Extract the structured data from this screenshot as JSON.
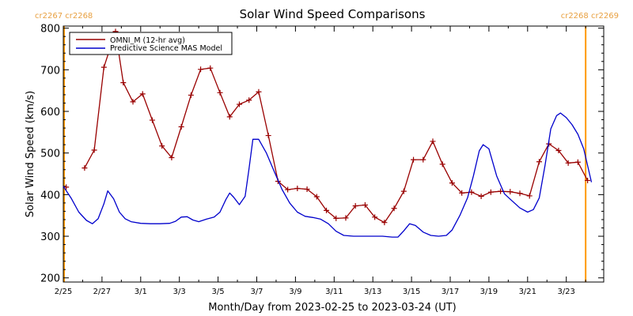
{
  "chart_data": {
    "type": "line",
    "title": "Solar Wind Speed Comparisons",
    "xlabel": "Month/Day from 2023-02-25 to 2023-03-24 (UT)",
    "ylabel": "Solar Wind Speed (km/s)",
    "ylim": [
      190,
      805
    ],
    "xlim": [
      0,
      27.6
    ],
    "grid": false,
    "legend_position": "top-left",
    "yticks": [
      200,
      300,
      400,
      500,
      600,
      700,
      800
    ],
    "xticks": [
      {
        "day": 0,
        "label": "2/25"
      },
      {
        "day": 2,
        "label": "2/27"
      },
      {
        "day": 4,
        "label": "3/1"
      },
      {
        "day": 6,
        "label": "3/3"
      },
      {
        "day": 8,
        "label": "3/5"
      },
      {
        "day": 10,
        "label": "3/7"
      },
      {
        "day": 12,
        "label": "3/9"
      },
      {
        "day": 14,
        "label": "3/11"
      },
      {
        "day": 16,
        "label": "3/13"
      },
      {
        "day": 18,
        "label": "3/15"
      },
      {
        "day": 20,
        "label": "3/17"
      },
      {
        "day": 22,
        "label": "3/19"
      },
      {
        "day": 24,
        "label": "3/21"
      },
      {
        "day": 26,
        "label": "3/23"
      }
    ],
    "carrington_rotations": [
      {
        "day": 0,
        "left_label": "cr2267",
        "right_label": "cr2268",
        "label_side": "left"
      },
      {
        "day": 27.0,
        "left_label": "cr2268",
        "right_label": "cr2269",
        "label_side": "right"
      }
    ],
    "colors": {
      "omni": "#990000",
      "mas": "#0000cc",
      "boundary": "#ff9900",
      "cr_text": "#e8a040"
    },
    "series": [
      {
        "name": "OMNI_M (12-hr avg)",
        "segments": [
          [
            [
              0.15,
              418
            ]
          ],
          [
            [
              1.1,
              464
            ],
            [
              1.6,
              507
            ],
            [
              2.1,
              706
            ],
            [
              2.7,
              792
            ],
            [
              3.1,
              669
            ],
            [
              3.6,
              623
            ],
            [
              4.1,
              642
            ],
            [
              4.6,
              579
            ],
            [
              5.1,
              517
            ],
            [
              5.6,
              489
            ],
            [
              6.1,
              563
            ],
            [
              6.6,
              639
            ],
            [
              7.1,
              701
            ],
            [
              7.6,
              704
            ],
            [
              8.1,
              645
            ],
            [
              8.6,
              587
            ],
            [
              9.1,
              617
            ],
            [
              9.6,
              627
            ],
            [
              10.1,
              647
            ],
            [
              10.6,
              542
            ],
            [
              11.1,
              432
            ],
            [
              11.6,
              412
            ],
            [
              12.1,
              415
            ],
            [
              12.6,
              413
            ],
            [
              13.1,
              395
            ],
            [
              13.6,
              362
            ],
            [
              14.1,
              343
            ],
            [
              14.6,
              344
            ],
            [
              15.1,
              373
            ],
            [
              15.6,
              375
            ],
            [
              16.1,
              346
            ],
            [
              16.6,
              333
            ],
            [
              17.1,
              367
            ],
            [
              17.6,
              408
            ],
            [
              18.1,
              484
            ],
            [
              18.6,
              484
            ],
            [
              19.1,
              528
            ],
            [
              19.6,
              473
            ],
            [
              20.1,
              428
            ],
            [
              20.6,
              404
            ],
            [
              21.1,
              406
            ],
            [
              21.6,
              396
            ],
            [
              22.1,
              406
            ],
            [
              22.6,
              408
            ],
            [
              23.1,
              407
            ],
            [
              23.6,
              403
            ],
            [
              24.1,
              397
            ],
            [
              24.6,
              479
            ],
            [
              25.1,
              522
            ],
            [
              25.6,
              506
            ],
            [
              26.1,
              476
            ],
            [
              26.6,
              478
            ],
            [
              27.1,
              434
            ]
          ]
        ]
      },
      {
        "name": "Predictive Science MAS Model",
        "segments": [
          [
            [
              0,
              420
            ],
            [
              0.4,
              392
            ],
            [
              0.8,
              358
            ],
            [
              1.2,
              338
            ],
            [
              1.5,
              330
            ],
            [
              1.8,
              342
            ],
            [
              2.1,
              378
            ],
            [
              2.3,
              409
            ],
            [
              2.6,
              390
            ],
            [
              2.9,
              358
            ],
            [
              3.2,
              342
            ],
            [
              3.5,
              335
            ],
            [
              4.0,
              331
            ],
            [
              4.5,
              330
            ],
            [
              5.0,
              330
            ],
            [
              5.5,
              331
            ],
            [
              5.8,
              336
            ],
            [
              6.1,
              346
            ],
            [
              6.4,
              347
            ],
            [
              6.7,
              339
            ],
            [
              7.0,
              335
            ],
            [
              7.4,
              341
            ],
            [
              7.8,
              346
            ],
            [
              8.1,
              358
            ],
            [
              8.4,
              388
            ],
            [
              8.6,
              404
            ],
            [
              8.8,
              394
            ],
            [
              9.1,
              376
            ],
            [
              9.4,
              396
            ],
            [
              9.6,
              462
            ],
            [
              9.8,
              533
            ],
            [
              10.1,
              533
            ],
            [
              10.5,
              500
            ],
            [
              10.9,
              456
            ],
            [
              11.3,
              413
            ],
            [
              11.7,
              380
            ],
            [
              12.1,
              358
            ],
            [
              12.5,
              348
            ],
            [
              12.9,
              345
            ],
            [
              13.3,
              341
            ],
            [
              13.7,
              330
            ],
            [
              14.1,
              312
            ],
            [
              14.5,
              302
            ],
            [
              15.0,
              300
            ],
            [
              15.5,
              300
            ],
            [
              16.0,
              300
            ],
            [
              16.5,
              300
            ],
            [
              17.0,
              298
            ],
            [
              17.3,
              298
            ],
            [
              17.6,
              313
            ],
            [
              17.9,
              330
            ],
            [
              18.2,
              326
            ],
            [
              18.6,
              310
            ],
            [
              19.0,
              302
            ],
            [
              19.4,
              300
            ],
            [
              19.8,
              302
            ],
            [
              20.1,
              315
            ],
            [
              20.5,
              350
            ],
            [
              20.9,
              393
            ],
            [
              21.2,
              445
            ],
            [
              21.5,
              505
            ],
            [
              21.7,
              520
            ],
            [
              22.0,
              510
            ],
            [
              22.4,
              445
            ],
            [
              22.8,
              402
            ],
            [
              23.2,
              385
            ],
            [
              23.6,
              368
            ],
            [
              24.0,
              358
            ],
            [
              24.3,
              364
            ],
            [
              24.6,
              392
            ],
            [
              24.9,
              470
            ],
            [
              25.2,
              558
            ],
            [
              25.5,
              590
            ],
            [
              25.7,
              596
            ],
            [
              26.0,
              585
            ],
            [
              26.3,
              568
            ],
            [
              26.6,
              545
            ],
            [
              26.9,
              510
            ],
            [
              27.1,
              470
            ],
            [
              27.3,
              430
            ]
          ]
        ]
      }
    ]
  }
}
